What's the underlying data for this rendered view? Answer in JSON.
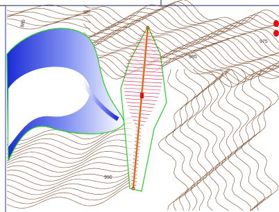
{
  "labels": {
    "contour_top_left": "985",
    "contour_mid_right": "985",
    "contour_top_right": "975",
    "contour_bottom": "990"
  }
}
